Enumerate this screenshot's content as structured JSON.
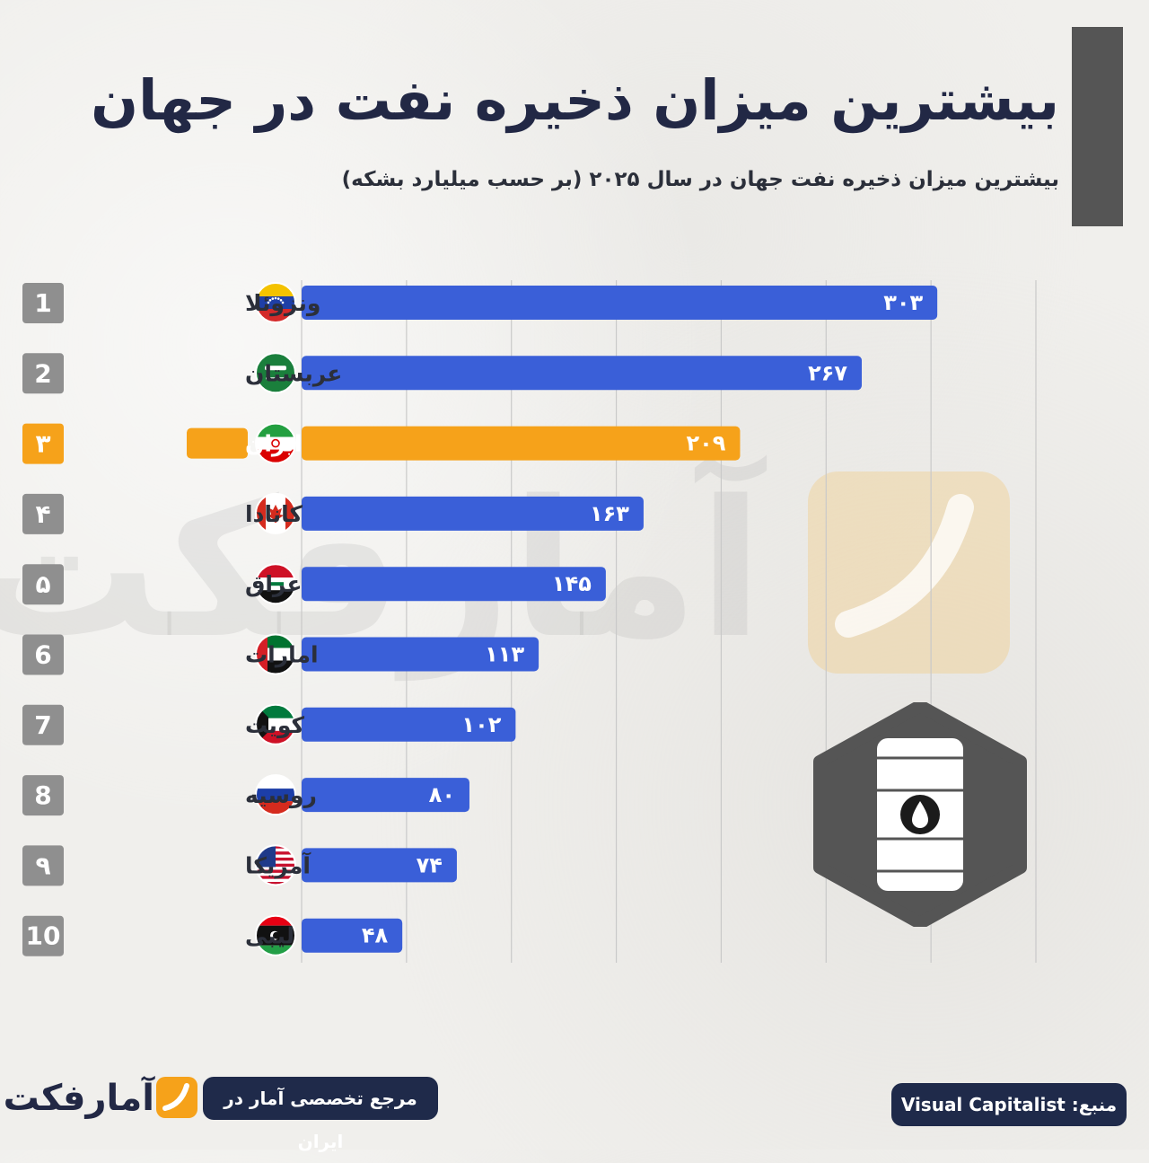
{
  "title": "بیشترین میزان ذخیره نفت در جهان",
  "subtitle": "بیشترین میزان ذخیره نفت جهان در سال ۲۰۲۵ (بر حسب میلیارد بشکه)",
  "watermark_text": "آمارفکت",
  "brand": {
    "logo_text": "آمارفکت",
    "tagline": "مرجع تخصصی آمار در ایران",
    "source": "منبع: Visual Capitalist"
  },
  "colors": {
    "bar": "#3a5fd8",
    "highlight": "#f6a21a",
    "rank_badge": "#8f8f8f",
    "grid": "#c9c9c9",
    "navy": "#1f2a4a"
  },
  "chart_data": {
    "type": "bar",
    "orientation": "horizontal",
    "categories": [
      "ونزوئلا",
      "عربستان",
      "ایران",
      "کانادا",
      "عراق",
      "امارات",
      "کویت",
      "روسیه",
      "آمریکا",
      "لیبی"
    ],
    "values": [
      303,
      267,
      209,
      163,
      145,
      113,
      102,
      80,
      74,
      48
    ],
    "value_labels": [
      "۳۰۳",
      "۲۶۷",
      "۲۰۹",
      "۱۶۳",
      "۱۴۵",
      "۱۱۳",
      "۱۰۲",
      "۸۰",
      "۷۴",
      "۴۸"
    ],
    "ranks": [
      "1",
      "2",
      "۳",
      "۴",
      "۵",
      "6",
      "7",
      "8",
      "۹",
      "10"
    ],
    "flags": [
      "venezuela",
      "saudi-arabia",
      "iran",
      "canada",
      "iraq",
      "uae",
      "kuwait",
      "russia",
      "usa",
      "libya"
    ],
    "highlight_category": "ایران",
    "xlim": [
      0,
      350
    ],
    "grid": true,
    "unit": "میلیارد بشکه"
  }
}
